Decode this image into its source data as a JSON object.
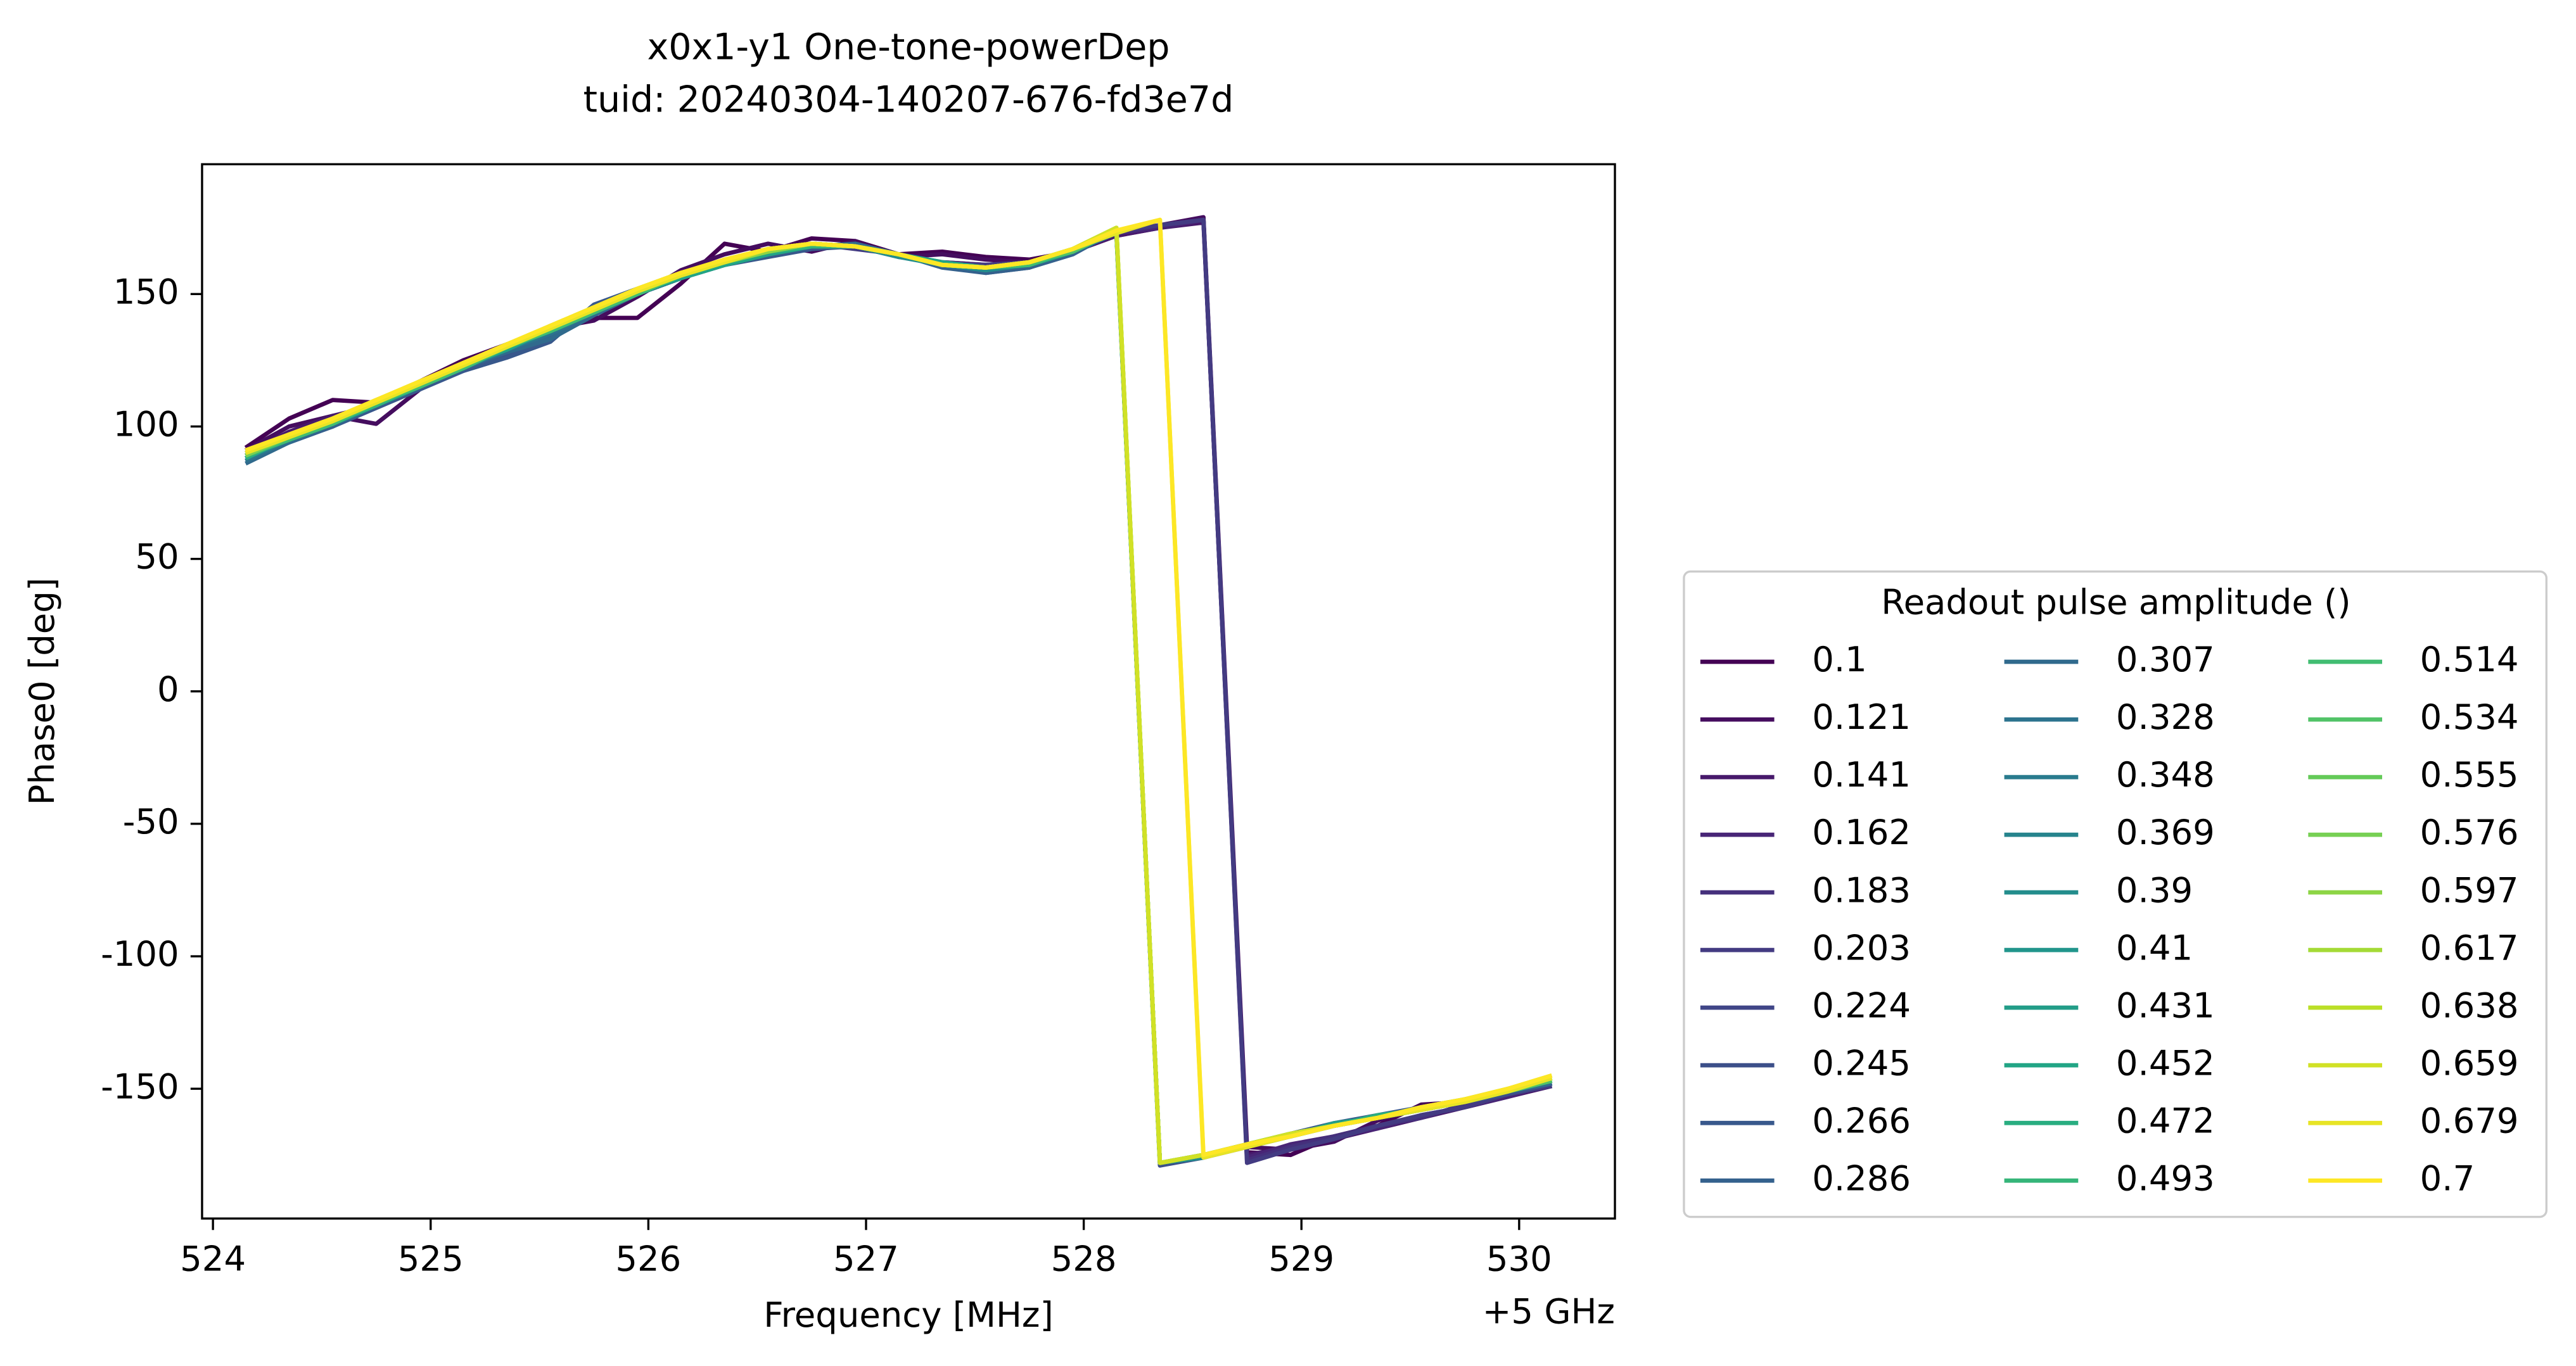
{
  "chart_data": {
    "type": "line",
    "title": "x0x1-y1 One-tone-powerDep",
    "subtitle": "tuid: 20240304-140207-676-fd3e7d",
    "x_label": "Frequency [MHz]",
    "x_offset_label": "+5 GHz",
    "y_label": "Phase0 [deg]",
    "legend_title": "Readout pulse amplitude ()",
    "xlim": [
      523.95,
      530.44
    ],
    "xticks": [
      524,
      525,
      526,
      527,
      528,
      529,
      530
    ],
    "ylim": [
      -199,
      199
    ],
    "yticks": [
      -150,
      -100,
      -50,
      0,
      50,
      100,
      150
    ],
    "grid": false,
    "x": [
      524.15,
      524.35,
      524.55,
      524.75,
      524.95,
      525.15,
      525.35,
      525.55,
      525.75,
      525.95,
      526.15,
      526.35,
      526.55,
      526.75,
      526.95,
      527.15,
      527.35,
      527.55,
      527.75,
      527.95,
      528.15,
      528.35,
      528.55,
      528.75,
      528.95,
      529.15,
      529.35,
      529.55,
      529.75,
      529.95,
      530.15
    ],
    "series": [
      {
        "name": "0.1",
        "color": "#440154",
        "values": [
          92,
          103,
          110,
          109,
          117,
          125,
          131,
          135,
          141,
          141,
          154,
          169,
          166,
          171,
          170,
          165,
          166,
          164,
          163,
          166,
          172,
          175,
          178,
          -174,
          -175,
          -168,
          -164,
          -156,
          -155,
          -152,
          -149
        ]
      },
      {
        "name": "0.121",
        "color": "#450d5f",
        "values": [
          91,
          100,
          104,
          101,
          114,
          123,
          130,
          137,
          140,
          149,
          159,
          165,
          169,
          166,
          170,
          164,
          165,
          163,
          162,
          166,
          173,
          176,
          179,
          -172,
          -173,
          -170,
          -162,
          -157,
          -155,
          -151,
          -148
        ]
      },
      {
        "name": "0.141",
        "color": "#47196b",
        "values": [
          90,
          98,
          104,
          108,
          116,
          124,
          131,
          137,
          143,
          150,
          157,
          163,
          166,
          168,
          168,
          165,
          162,
          161,
          162,
          166,
          172,
          175,
          177,
          -175,
          -172,
          -169,
          -165,
          -161,
          -157,
          -153,
          -149
        ]
      },
      {
        "name": "0.162",
        "color": "#482576",
        "values": [
          89,
          97,
          103,
          108,
          117,
          123,
          130,
          137,
          144,
          151,
          157,
          162,
          167,
          169,
          168,
          164,
          162,
          161,
          161,
          166,
          173,
          175,
          178,
          -176,
          -171,
          -168,
          -165,
          -160,
          -157,
          -153,
          -148
        ]
      },
      {
        "name": "0.183",
        "color": "#45307c",
        "values": [
          90,
          97,
          102,
          109,
          116,
          124,
          131,
          136,
          143,
          150,
          156,
          162,
          166,
          168,
          168,
          165,
          161,
          160,
          162,
          167,
          173,
          176,
          178,
          -177,
          -172,
          -168,
          -164,
          -161,
          -156,
          -152,
          -148
        ]
      },
      {
        "name": "0.203",
        "color": "#433b82",
        "values": [
          89,
          96,
          102,
          108,
          115,
          123,
          130,
          138,
          144,
          151,
          157,
          163,
          166,
          169,
          167,
          165,
          161,
          161,
          162,
          166,
          174,
          176,
          178,
          -178,
          -173,
          -169,
          -164,
          -160,
          -157,
          -152,
          -149
        ]
      },
      {
        "name": "0.224",
        "color": "#404687",
        "values": [
          89,
          96,
          101,
          109,
          116,
          122,
          128,
          135,
          144,
          150,
          156,
          161,
          165,
          168,
          168,
          165,
          161,
          160,
          161,
          166,
          173,
          -178,
          -175,
          -171,
          -168,
          -164,
          -160,
          -158,
          -155,
          -151,
          -147
        ]
      },
      {
        "name": "0.245",
        "color": "#3c4f89",
        "values": [
          88,
          95,
          100,
          108,
          115,
          121,
          127,
          134,
          145,
          151,
          157,
          162,
          165,
          168,
          168,
          165,
          161,
          159,
          160,
          166,
          174,
          -179,
          -176,
          -172,
          -168,
          -164,
          -161,
          -158,
          -155,
          -152,
          -148
        ]
      },
      {
        "name": "0.266",
        "color": "#38588c",
        "values": [
          87,
          94,
          100,
          107,
          114,
          121,
          126,
          132,
          146,
          152,
          157,
          161,
          164,
          167,
          168,
          165,
          161,
          158,
          160,
          166,
          174,
          -178,
          -175,
          -171,
          -167,
          -163,
          -160,
          -157,
          -155,
          -151,
          -147
        ]
      },
      {
        "name": "0.286",
        "color": "#34618d",
        "values": [
          87,
          94,
          100,
          108,
          115,
          122,
          128,
          134,
          144,
          151,
          156,
          161,
          165,
          168,
          168,
          165,
          160,
          158,
          160,
          165,
          174,
          -178,
          -175,
          -172,
          -167,
          -164,
          -161,
          -158,
          -154,
          -151,
          -147
        ]
      },
      {
        "name": "0.307",
        "color": "#306a8d",
        "values": [
          86,
          94,
          101,
          109,
          116,
          123,
          128,
          133,
          142,
          150,
          156,
          161,
          165,
          168,
          169,
          165,
          161,
          159,
          161,
          166,
          174,
          -178,
          -175,
          -171,
          -167,
          -164,
          -161,
          -158,
          -155,
          -151,
          -148
        ]
      },
      {
        "name": "0.328",
        "color": "#2c738e",
        "values": [
          87,
          95,
          101,
          108,
          115,
          122,
          129,
          135,
          143,
          150,
          156,
          161,
          165,
          168,
          168,
          165,
          161,
          159,
          161,
          166,
          173,
          -178,
          -175,
          -171,
          -168,
          -164,
          -161,
          -158,
          -155,
          -151,
          -147
        ]
      },
      {
        "name": "0.348",
        "color": "#297b8e",
        "values": [
          88,
          95,
          101,
          108,
          115,
          122,
          129,
          136,
          143,
          150,
          156,
          161,
          165,
          168,
          168,
          165,
          161,
          160,
          161,
          166,
          174,
          -178,
          -175,
          -171,
          -167,
          -164,
          -161,
          -158,
          -155,
          -151,
          -147
        ]
      },
      {
        "name": "0.369",
        "color": "#26848d",
        "values": [
          88,
          95,
          102,
          108,
          115,
          123,
          129,
          136,
          143,
          150,
          156,
          162,
          165,
          168,
          168,
          165,
          161,
          160,
          161,
          166,
          174,
          -178,
          -175,
          -171,
          -167,
          -164,
          -161,
          -158,
          -155,
          -151,
          -147
        ]
      },
      {
        "name": "0.39",
        "color": "#238d8c",
        "values": [
          88,
          96,
          101,
          109,
          116,
          122,
          130,
          136,
          144,
          150,
          157,
          161,
          166,
          168,
          168,
          164,
          161,
          159,
          161,
          166,
          174,
          -178,
          -176,
          -171,
          -167,
          -164,
          -160,
          -158,
          -155,
          -151,
          -147
        ]
      },
      {
        "name": "0.41",
        "color": "#21958b",
        "values": [
          89,
          95,
          102,
          108,
          115,
          123,
          129,
          137,
          143,
          151,
          156,
          162,
          165,
          169,
          168,
          165,
          161,
          160,
          162,
          166,
          174,
          -178,
          -175,
          -172,
          -167,
          -164,
          -161,
          -157,
          -155,
          -150,
          -147
        ]
      },
      {
        "name": "0.431",
        "color": "#229d88",
        "values": [
          88,
          96,
          102,
          109,
          116,
          122,
          130,
          136,
          144,
          150,
          157,
          162,
          166,
          168,
          168,
          165,
          161,
          160,
          161,
          166,
          174,
          -178,
          -175,
          -171,
          -168,
          -163,
          -161,
          -158,
          -154,
          -151,
          -146
        ]
      },
      {
        "name": "0.452",
        "color": "#22a585",
        "values": [
          89,
          95,
          101,
          108,
          115,
          123,
          129,
          137,
          143,
          151,
          156,
          161,
          165,
          168,
          168,
          165,
          162,
          160,
          162,
          167,
          174,
          -178,
          -175,
          -171,
          -167,
          -164,
          -161,
          -158,
          -155,
          -151,
          -147
        ]
      },
      {
        "name": "0.472",
        "color": "#29ad80",
        "values": [
          88,
          96,
          102,
          109,
          116,
          123,
          130,
          137,
          144,
          150,
          157,
          162,
          166,
          169,
          168,
          165,
          161,
          160,
          161,
          166,
          174,
          -178,
          -175,
          -171,
          -167,
          -164,
          -160,
          -158,
          -155,
          -151,
          -147
        ]
      },
      {
        "name": "0.493",
        "color": "#35b579",
        "values": [
          89,
          96,
          102,
          108,
          116,
          123,
          130,
          137,
          144,
          151,
          157,
          162,
          166,
          168,
          168,
          165,
          161,
          160,
          162,
          166,
          174,
          -178,
          -175,
          -171,
          -168,
          -164,
          -161,
          -157,
          -154,
          -151,
          -147
        ]
      },
      {
        "name": "0.514",
        "color": "#41bd72",
        "values": [
          89,
          95,
          101,
          109,
          115,
          122,
          130,
          136,
          143,
          150,
          157,
          162,
          166,
          169,
          168,
          165,
          161,
          160,
          161,
          167,
          174,
          -178,
          -175,
          -171,
          -167,
          -164,
          -161,
          -158,
          -155,
          -150,
          -146
        ]
      },
      {
        "name": "0.534",
        "color": "#51c367",
        "values": [
          89,
          96,
          102,
          109,
          116,
          123,
          130,
          137,
          144,
          151,
          157,
          162,
          166,
          169,
          168,
          165,
          161,
          160,
          162,
          166,
          174,
          -178,
          -175,
          -171,
          -167,
          -164,
          -161,
          -158,
          -155,
          -151,
          -147
        ]
      },
      {
        "name": "0.555",
        "color": "#64ca58",
        "values": [
          90,
          96,
          102,
          109,
          116,
          123,
          130,
          137,
          144,
          151,
          157,
          162,
          166,
          169,
          168,
          165,
          161,
          160,
          162,
          167,
          174,
          -178,
          -175,
          -171,
          -167,
          -164,
          -161,
          -158,
          -155,
          -151,
          -146
        ]
      },
      {
        "name": "0.576",
        "color": "#76d053",
        "values": [
          89,
          96,
          103,
          109,
          116,
          123,
          130,
          137,
          144,
          151,
          157,
          162,
          167,
          169,
          168,
          165,
          161,
          160,
          162,
          167,
          174,
          -178,
          -175,
          -171,
          -168,
          -164,
          -161,
          -158,
          -154,
          -151,
          -146
        ]
      },
      {
        "name": "0.597",
        "color": "#8dd545",
        "values": [
          90,
          96,
          102,
          109,
          117,
          123,
          131,
          137,
          144,
          151,
          157,
          162,
          166,
          169,
          168,
          165,
          161,
          160,
          162,
          167,
          175,
          -178,
          -175,
          -171,
          -167,
          -164,
          -161,
          -158,
          -155,
          -151,
          -146
        ]
      },
      {
        "name": "0.617",
        "color": "#a4da36",
        "values": [
          90,
          96,
          103,
          110,
          116,
          124,
          130,
          138,
          145,
          151,
          157,
          163,
          167,
          169,
          168,
          165,
          161,
          160,
          162,
          167,
          175,
          -178,
          -175,
          -171,
          -167,
          -164,
          -161,
          -157,
          -154,
          -150,
          -146
        ]
      },
      {
        "name": "0.638",
        "color": "#bbdf27",
        "values": [
          90,
          97,
          103,
          109,
          117,
          124,
          131,
          137,
          145,
          152,
          158,
          162,
          167,
          169,
          168,
          165,
          161,
          160,
          162,
          167,
          175,
          -178,
          -175,
          -171,
          -167,
          -164,
          -161,
          -157,
          -154,
          -150,
          -146
        ]
      },
      {
        "name": "0.659",
        "color": "#d1e126",
        "values": [
          90,
          97,
          103,
          110,
          117,
          124,
          131,
          138,
          145,
          152,
          158,
          163,
          167,
          169,
          168,
          165,
          161,
          160,
          162,
          167,
          175,
          -178,
          -175,
          -171,
          -167,
          -164,
          -161,
          -157,
          -154,
          -150,
          -145
        ]
      },
      {
        "name": "0.679",
        "color": "#e7e425",
        "values": [
          90,
          96,
          102,
          109,
          116,
          123,
          130,
          137,
          144,
          151,
          157,
          162,
          167,
          169,
          168,
          165,
          161,
          160,
          162,
          167,
          173,
          178,
          -176,
          -172,
          -168,
          -164,
          -161,
          -158,
          -155,
          -151,
          -146
        ]
      },
      {
        "name": "0.7",
        "color": "#fde725",
        "values": [
          91,
          97,
          103,
          110,
          117,
          124,
          131,
          138,
          145,
          152,
          158,
          163,
          167,
          169,
          168,
          165,
          161,
          160,
          162,
          167,
          174,
          178,
          -175,
          -171,
          -168,
          -164,
          -161,
          -157,
          -154,
          -150,
          -145
        ]
      }
    ]
  }
}
